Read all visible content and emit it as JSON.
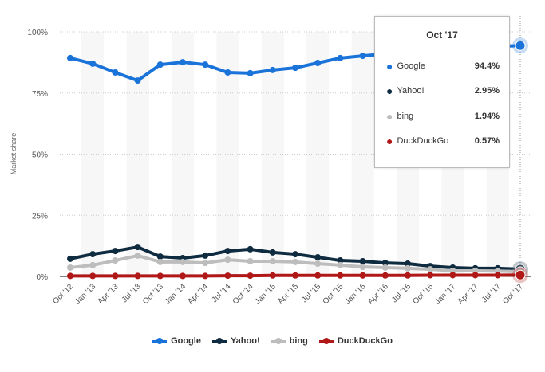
{
  "chart_data": {
    "type": "line",
    "ylabel": "Market share",
    "ylim": [
      0,
      100
    ],
    "yticks": [
      "0%",
      "25%",
      "50%",
      "75%",
      "100%"
    ],
    "ytick_values": [
      0,
      25,
      50,
      75,
      100
    ],
    "categories": [
      "Oct '12",
      "Jan '13",
      "Apr '13",
      "Jul '13",
      "Oct '13",
      "Jan '14",
      "Apr '14",
      "Jul '14",
      "Oct '14",
      "Jan '15",
      "Apr '15",
      "Jul '15",
      "Oct '15",
      "Jan '16",
      "Apr '16",
      "Jul '16",
      "Oct '16",
      "Jan '17",
      "Apr '17",
      "Jul '17",
      "Oct '17"
    ],
    "series": [
      {
        "name": "Google",
        "color": "#1a73d9",
        "values": [
          89.3,
          87.0,
          83.4,
          80.1,
          86.6,
          87.6,
          86.6,
          83.4,
          83.1,
          84.4,
          85.3,
          87.3,
          89.3,
          90.2,
          91.0,
          92.0,
          92.5,
          93.0,
          93.5,
          94.0,
          94.4
        ]
      },
      {
        "name": "Yahoo!",
        "color": "#0f2b40",
        "values": [
          7.2,
          9.1,
          10.4,
          12.0,
          8.1,
          7.5,
          8.5,
          10.4,
          11.1,
          9.8,
          9.1,
          7.8,
          6.5,
          6.2,
          5.5,
          5.2,
          4.2,
          3.6,
          3.3,
          3.3,
          2.95
        ]
      },
      {
        "name": "bing",
        "color": "#bdbdbd",
        "values": [
          3.6,
          4.6,
          6.5,
          8.5,
          5.9,
          5.9,
          5.5,
          6.8,
          6.2,
          6.2,
          5.9,
          5.2,
          4.6,
          3.9,
          3.6,
          3.3,
          2.9,
          2.3,
          2.3,
          2.2,
          1.94
        ]
      },
      {
        "name": "DuckDuckGo",
        "color": "#b01818",
        "values": [
          0.2,
          0.2,
          0.2,
          0.2,
          0.2,
          0.2,
          0.2,
          0.3,
          0.3,
          0.4,
          0.4,
          0.4,
          0.4,
          0.4,
          0.4,
          0.4,
          0.5,
          0.5,
          0.5,
          0.5,
          0.57
        ]
      }
    ],
    "legend_position": "bottom-center",
    "grid": true
  },
  "tooltip": {
    "title": "Oct '17",
    "rows": [
      {
        "name": "Google",
        "value": "94.4%",
        "color": "#1a73d9"
      },
      {
        "name": "Yahoo!",
        "value": "2.95%",
        "color": "#0f2b40"
      },
      {
        "name": "bing",
        "value": "1.94%",
        "color": "#bdbdbd"
      },
      {
        "name": "DuckDuckGo",
        "value": "0.57%",
        "color": "#b01818"
      }
    ]
  }
}
